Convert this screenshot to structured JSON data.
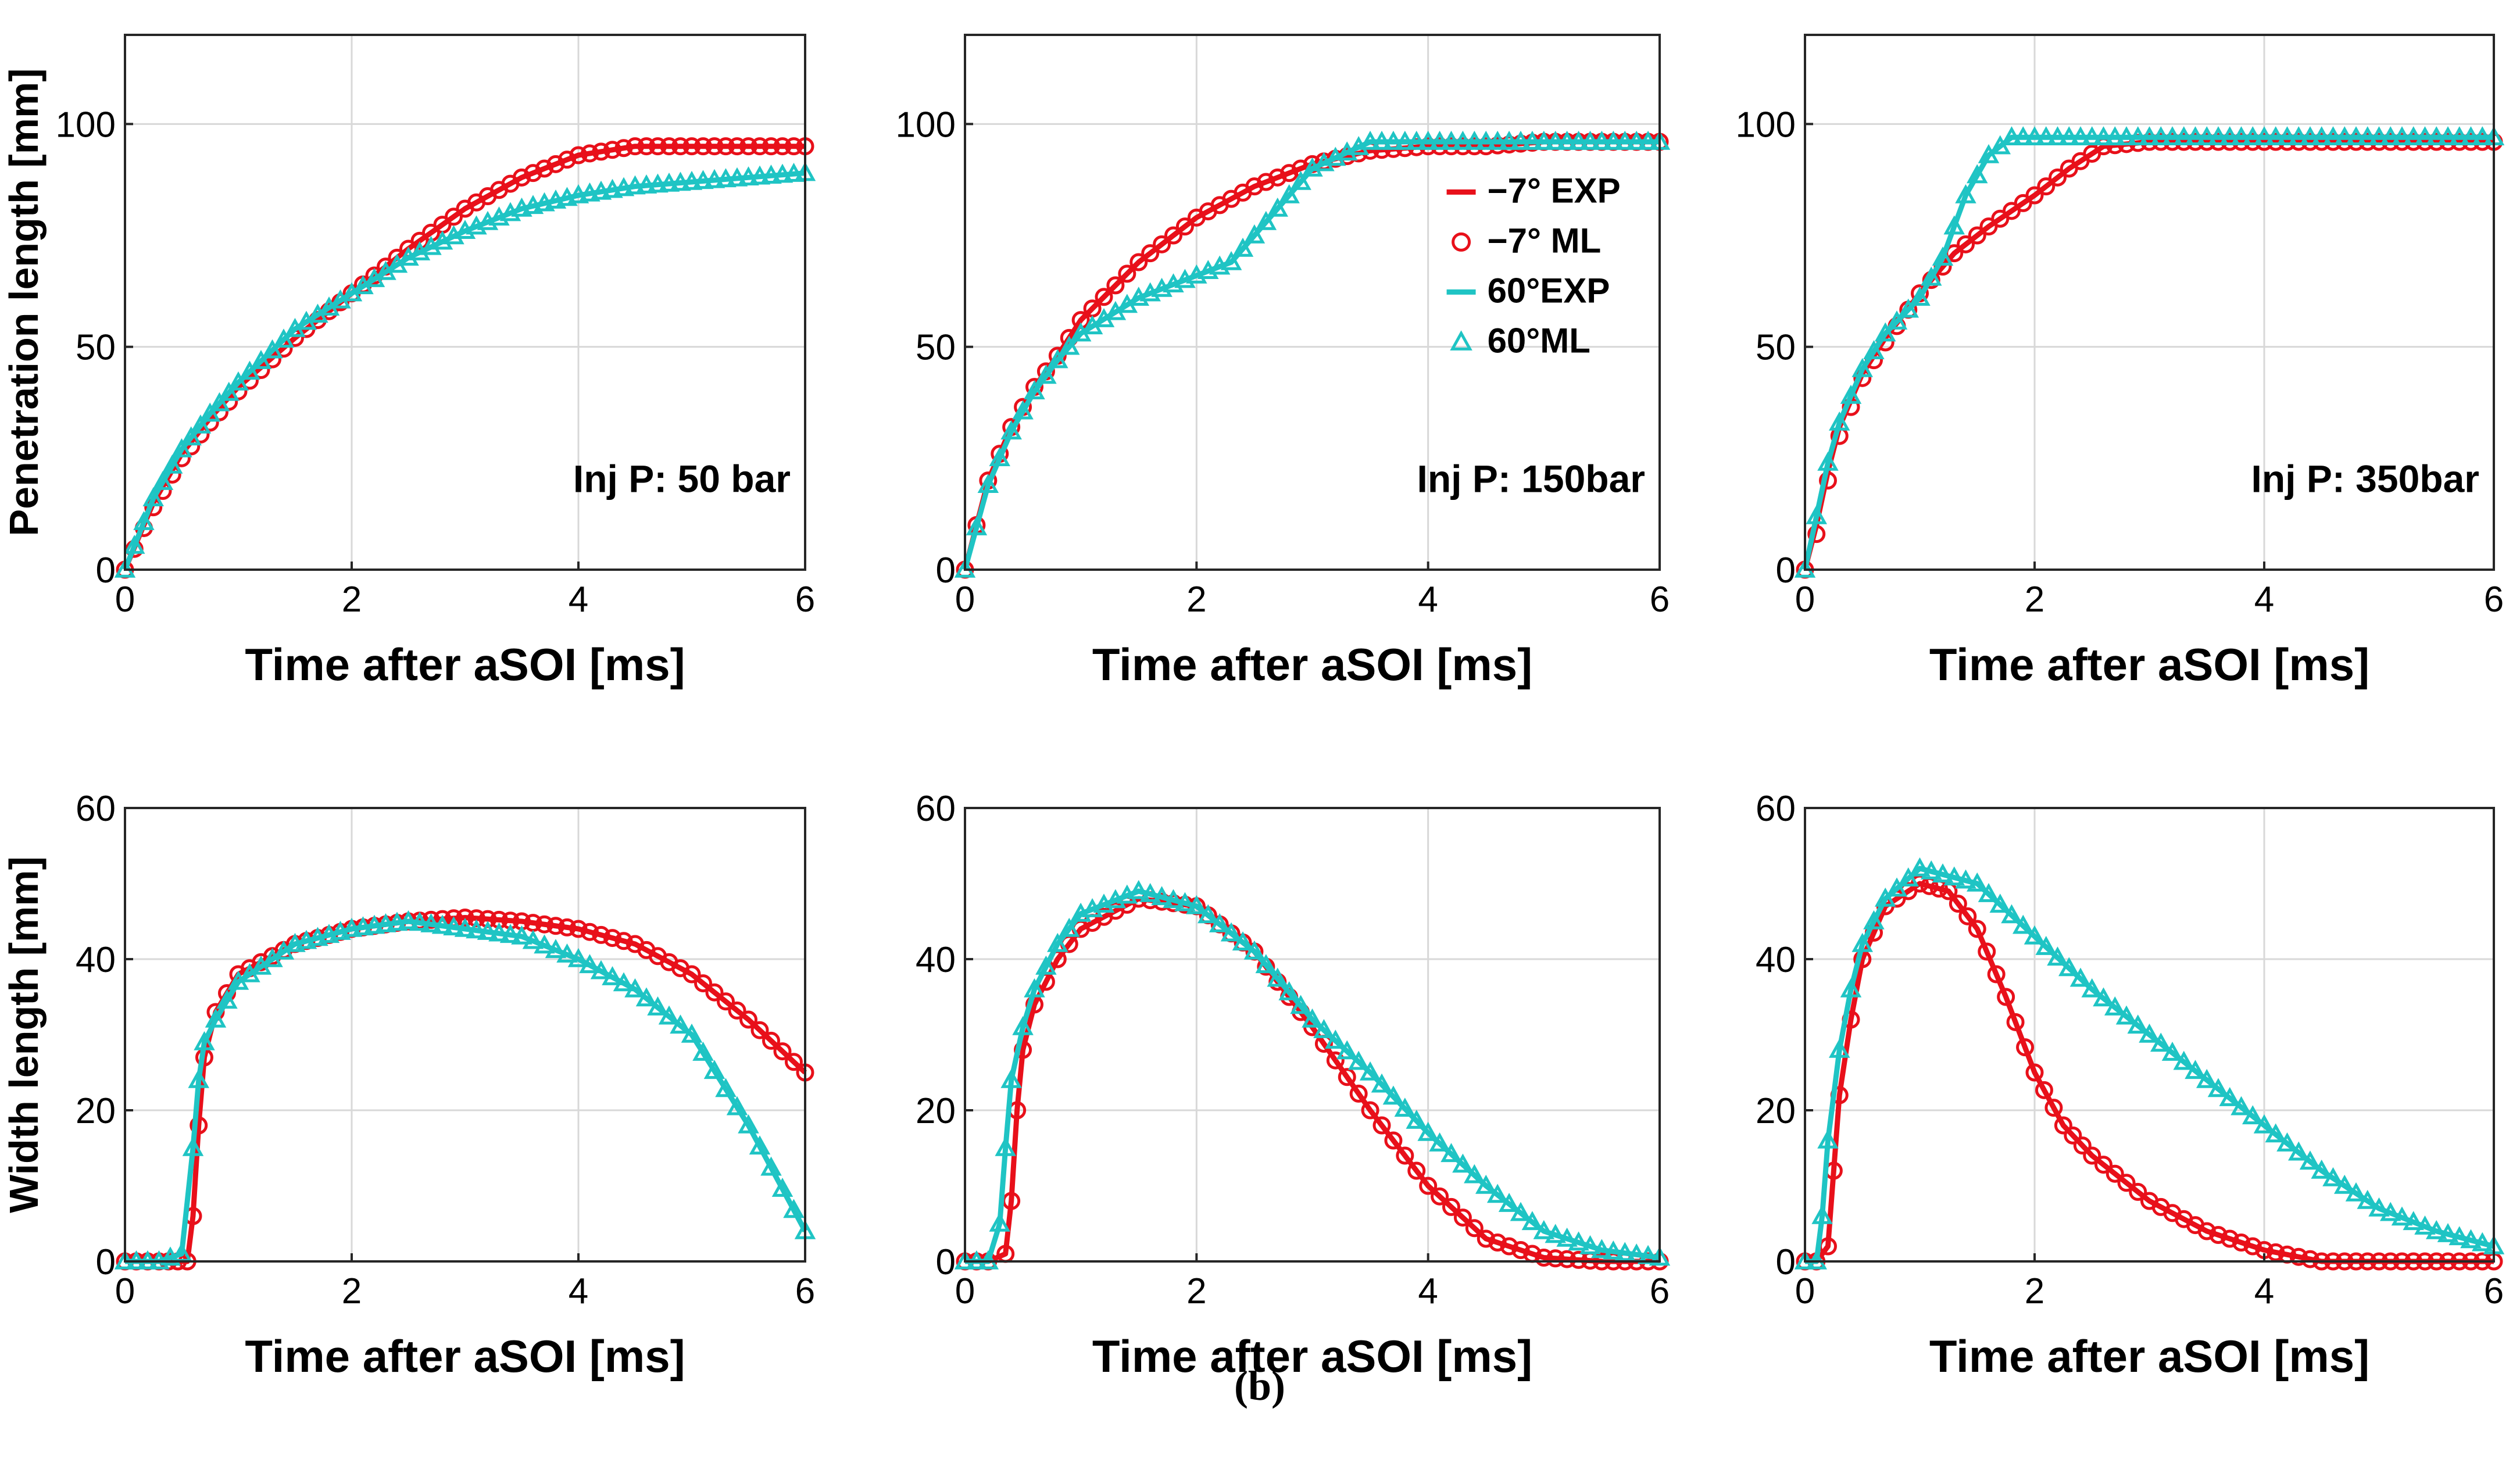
{
  "caption": "(b)",
  "colors": {
    "red": "#e8101a",
    "cyan": "#1fc4c4",
    "grid": "#d8d8d8",
    "axis": "#262626"
  },
  "chart_data": [
    {
      "type": "line",
      "panel": "top-left",
      "xlabel": "Time after aSOI [ms]",
      "ylabel": "Penetration length [mm]",
      "xlim": [
        0,
        6
      ],
      "ylim": [
        0,
        120
      ],
      "xticks": [
        "0",
        "2",
        "4",
        "6"
      ],
      "yticks": [
        "0",
        "50",
        "100"
      ],
      "annotation": "Inj P: 50 bar",
      "series": [
        {
          "name": "−7° EXP",
          "x": [
            0,
            0.25,
            0.5,
            0.75,
            1,
            1.5,
            2,
            2.5,
            3,
            3.5,
            4,
            4.5,
            5,
            5.5,
            6
          ],
          "y": [
            0,
            15,
            26,
            34,
            41,
            52,
            62,
            72,
            81,
            88,
            93,
            95,
            95,
            95,
            95
          ]
        },
        {
          "name": "−7° ML",
          "x": [
            0,
            0.25,
            0.5,
            0.75,
            1,
            1.5,
            2,
            2.5,
            3,
            3.5,
            4,
            4.5,
            5,
            5.5,
            6
          ],
          "y": [
            0,
            14,
            25,
            33,
            40,
            52,
            62,
            72,
            81,
            88,
            93,
            95,
            95,
            95,
            95
          ]
        },
        {
          "name": "60°EXP",
          "x": [
            0,
            0.25,
            0.5,
            0.75,
            1,
            1.5,
            2,
            2.5,
            3,
            3.5,
            4,
            4.5,
            5,
            5.5,
            6
          ],
          "y": [
            0,
            16,
            27,
            35,
            42,
            54,
            62,
            70,
            76,
            81,
            84,
            86,
            87,
            88,
            89
          ]
        },
        {
          "name": "60°ML",
          "x": [
            0,
            0.25,
            0.5,
            0.75,
            1,
            1.5,
            2,
            2.5,
            3,
            3.5,
            4,
            4.5,
            5,
            5.5,
            6
          ],
          "y": [
            0,
            16,
            27,
            35,
            42,
            54,
            62,
            70,
            76,
            81,
            84,
            86,
            87,
            88,
            89
          ]
        }
      ]
    },
    {
      "type": "line",
      "panel": "top-middle",
      "xlabel": "Time after aSOI [ms]",
      "ylabel": "",
      "xlim": [
        0,
        6
      ],
      "ylim": [
        0,
        120
      ],
      "xticks": [
        "0",
        "2",
        "4",
        "6"
      ],
      "yticks": [
        "0",
        "50",
        "100"
      ],
      "annotation": "Inj P: 150bar",
      "legend": {
        "position": "inside-right",
        "entries": [
          "−7° EXP",
          "−7° ML",
          "60°EXP",
          "60°ML"
        ]
      },
      "series": [
        {
          "name": "−7° EXP",
          "x": [
            0,
            0.2,
            0.4,
            0.6,
            0.8,
            1,
            1.5,
            2,
            2.5,
            3,
            3.5,
            4,
            4.5,
            5,
            5.5,
            6
          ],
          "y": [
            0,
            20,
            32,
            41,
            48,
            56,
            69,
            79,
            86,
            91,
            94,
            95,
            95,
            96,
            96,
            96
          ]
        },
        {
          "name": "−7° ML",
          "x": [
            0,
            0.2,
            0.4,
            0.6,
            0.8,
            1,
            1.5,
            2,
            2.5,
            3,
            3.5,
            4,
            4.5,
            5,
            5.5,
            6
          ],
          "y": [
            0,
            20,
            32,
            41,
            48,
            56,
            69,
            79,
            86,
            91,
            94,
            95,
            95,
            96,
            96,
            96
          ]
        },
        {
          "name": "60°EXP",
          "x": [
            0,
            0.2,
            0.4,
            0.6,
            0.8,
            1,
            1.5,
            2,
            2.3,
            2.6,
            3,
            3.5,
            4,
            5,
            6
          ],
          "y": [
            0,
            19,
            31,
            40,
            47,
            53,
            61,
            66,
            69,
            78,
            90,
            96,
            96,
            96,
            96
          ]
        },
        {
          "name": "60°ML",
          "x": [
            0,
            0.2,
            0.4,
            0.6,
            0.8,
            1,
            1.5,
            2,
            2.3,
            2.6,
            3,
            3.5,
            4,
            5,
            6
          ],
          "y": [
            0,
            19,
            31,
            40,
            47,
            53,
            61,
            66,
            69,
            78,
            90,
            96,
            96,
            96,
            96
          ]
        }
      ]
    },
    {
      "type": "line",
      "panel": "top-right",
      "xlabel": "Time after aSOI [ms]",
      "ylabel": "",
      "xlim": [
        0,
        6
      ],
      "ylim": [
        0,
        120
      ],
      "xticks": [
        "0",
        "2",
        "4",
        "6"
      ],
      "yticks": [
        "0",
        "50",
        "100"
      ],
      "annotation": "Inj P: 350bar",
      "series": [
        {
          "name": "−7° EXP",
          "x": [
            0,
            0.1,
            0.2,
            0.3,
            0.5,
            0.7,
            1,
            1.3,
            1.6,
            2,
            2.3,
            2.6,
            3,
            4,
            5,
            6
          ],
          "y": [
            0,
            10,
            22,
            32,
            44,
            52,
            62,
            71,
            77,
            84,
            90,
            95,
            96,
            96,
            96,
            96
          ]
        },
        {
          "name": "−7° ML",
          "x": [
            0,
            0.1,
            0.2,
            0.3,
            0.5,
            0.7,
            1,
            1.3,
            1.6,
            2,
            2.3,
            2.6,
            3,
            4,
            5,
            6
          ],
          "y": [
            0,
            8,
            20,
            30,
            43,
            51,
            62,
            71,
            77,
            84,
            90,
            95,
            96,
            96,
            96,
            96
          ]
        },
        {
          "name": "60°EXP",
          "x": [
            0,
            0.1,
            0.2,
            0.3,
            0.5,
            0.7,
            1,
            1.2,
            1.4,
            1.6,
            1.8,
            2,
            3,
            4,
            5,
            6
          ],
          "y": [
            0,
            12,
            24,
            33,
            45,
            53,
            61,
            70,
            84,
            93,
            97,
            97,
            97,
            97,
            97,
            97
          ]
        },
        {
          "name": "60°ML",
          "x": [
            0,
            0.1,
            0.2,
            0.3,
            0.5,
            0.7,
            1,
            1.2,
            1.4,
            1.6,
            1.8,
            2,
            3,
            4,
            5,
            6
          ],
          "y": [
            0,
            12,
            24,
            33,
            45,
            53,
            61,
            70,
            84,
            93,
            97,
            97,
            97,
            97,
            97,
            97
          ]
        }
      ]
    },
    {
      "type": "line",
      "panel": "bottom-left",
      "xlabel": "Time after aSOI [ms]",
      "ylabel": "Width length [mm]",
      "xlim": [
        0,
        6
      ],
      "ylim": [
        0,
        60
      ],
      "xticks": [
        "0",
        "2",
        "4",
        "6"
      ],
      "yticks": [
        "0",
        "20",
        "40",
        "60"
      ],
      "series": [
        {
          "name": "−7° EXP",
          "x": [
            0,
            0.3,
            0.55,
            0.6,
            0.65,
            0.7,
            0.8,
            1,
            1.5,
            2,
            2.5,
            3,
            3.5,
            4,
            4.5,
            5,
            5.5,
            6
          ],
          "y": [
            0,
            0,
            0,
            6,
            18,
            27,
            33,
            38,
            42,
            44,
            45,
            45.5,
            45,
            44,
            42,
            38,
            32,
            25
          ]
        },
        {
          "name": "−7° ML",
          "x": [
            0,
            0.3,
            0.55,
            0.6,
            0.65,
            0.7,
            0.8,
            1,
            1.5,
            2,
            2.5,
            3,
            3.5,
            4,
            4.5,
            5,
            5.5,
            6
          ],
          "y": [
            0,
            0,
            0,
            6,
            18,
            27,
            33,
            38,
            42,
            44,
            45,
            45.5,
            45,
            44,
            42,
            38,
            32,
            25
          ]
        },
        {
          "name": "60°EXP",
          "x": [
            0,
            0.3,
            0.5,
            0.6,
            0.65,
            0.7,
            0.8,
            1,
            1.5,
            2,
            2.5,
            3,
            3.5,
            4,
            4.5,
            5,
            5.5,
            6
          ],
          "y": [
            0,
            0,
            1,
            15,
            24,
            29,
            32,
            37,
            42,
            44,
            45,
            44,
            43,
            40,
            36,
            30,
            18,
            4
          ]
        },
        {
          "name": "60°ML",
          "x": [
            0,
            0.3,
            0.5,
            0.6,
            0.65,
            0.7,
            0.8,
            1,
            1.5,
            2,
            2.5,
            3,
            3.5,
            4,
            4.5,
            5,
            5.5,
            6
          ],
          "y": [
            0,
            0,
            1,
            15,
            24,
            29,
            32,
            37,
            42,
            44,
            45,
            44,
            43,
            40,
            36,
            30,
            18,
            4
          ]
        }
      ]
    },
    {
      "type": "line",
      "panel": "bottom-middle",
      "xlabel": "Time after aSOI [ms]",
      "ylabel": "",
      "xlim": [
        0,
        6
      ],
      "ylim": [
        0,
        60
      ],
      "xticks": [
        "0",
        "2",
        "4",
        "6"
      ],
      "yticks": [
        "0",
        "20",
        "40",
        "60"
      ],
      "series": [
        {
          "name": "−7° EXP",
          "x": [
            0,
            0.2,
            0.35,
            0.4,
            0.45,
            0.5,
            0.6,
            0.8,
            1,
            1.5,
            2,
            2.5,
            3,
            3.5,
            4,
            4.5,
            5,
            5.5,
            6
          ],
          "y": [
            0,
            0,
            1,
            8,
            20,
            28,
            34,
            40,
            44,
            48,
            47,
            41,
            31,
            20,
            10,
            3,
            0.5,
            0,
            0
          ]
        },
        {
          "name": "−7° ML",
          "x": [
            0,
            0.2,
            0.35,
            0.4,
            0.45,
            0.5,
            0.6,
            0.8,
            1,
            1.5,
            2,
            2.5,
            3,
            3.5,
            4,
            4.5,
            5,
            5.5,
            6
          ],
          "y": [
            0,
            0,
            1,
            8,
            20,
            28,
            34,
            40,
            44,
            48,
            47,
            41,
            31,
            20,
            10,
            3,
            0.5,
            0,
            0
          ]
        },
        {
          "name": "60°EXP",
          "x": [
            0,
            0.2,
            0.3,
            0.35,
            0.4,
            0.5,
            0.6,
            0.8,
            1,
            1.5,
            2,
            2.5,
            3,
            3.5,
            4,
            4.5,
            5,
            5.5,
            6
          ],
          "y": [
            0,
            0,
            5,
            15,
            24,
            31,
            36,
            42,
            46,
            49,
            47,
            41,
            32,
            25,
            17,
            10,
            4,
            1.5,
            0.5
          ]
        },
        {
          "name": "60°ML",
          "x": [
            0,
            0.2,
            0.3,
            0.35,
            0.4,
            0.5,
            0.6,
            0.8,
            1,
            1.5,
            2,
            2.5,
            3,
            3.5,
            4,
            4.5,
            5,
            5.5,
            6
          ],
          "y": [
            0,
            0,
            5,
            15,
            24,
            31,
            36,
            42,
            46,
            49,
            47,
            41,
            32,
            25,
            17,
            10,
            4,
            1.5,
            0.5
          ]
        }
      ]
    },
    {
      "type": "line",
      "panel": "bottom-right",
      "xlabel": "Time after aSOI [ms]",
      "ylabel": "",
      "xlim": [
        0,
        6
      ],
      "ylim": [
        0,
        60
      ],
      "xticks": [
        "0",
        "2",
        "4",
        "6"
      ],
      "yticks": [
        "0",
        "20",
        "40",
        "60"
      ],
      "series": [
        {
          "name": "−7° EXP",
          "x": [
            0,
            0.1,
            0.2,
            0.25,
            0.3,
            0.4,
            0.5,
            0.7,
            1,
            1.25,
            1.5,
            1.75,
            2,
            2.25,
            2.5,
            3,
            3.5,
            4,
            4.5,
            5,
            5.5,
            6
          ],
          "y": [
            0,
            0,
            2,
            12,
            22,
            32,
            40,
            47,
            50,
            49,
            44,
            35,
            25,
            18,
            14,
            8,
            4,
            1.5,
            0,
            0,
            0,
            0
          ]
        },
        {
          "name": "−7° ML",
          "x": [
            0,
            0.1,
            0.2,
            0.25,
            0.3,
            0.4,
            0.5,
            0.7,
            1,
            1.25,
            1.5,
            1.75,
            2,
            2.25,
            2.5,
            3,
            3.5,
            4,
            4.5,
            5,
            5.5,
            6
          ],
          "y": [
            0,
            0,
            2,
            12,
            22,
            32,
            40,
            47,
            50,
            49,
            44,
            35,
            25,
            18,
            14,
            8,
            4,
            1.5,
            0,
            0,
            0,
            0
          ]
        },
        {
          "name": "60°EXP",
          "x": [
            0,
            0.1,
            0.15,
            0.2,
            0.3,
            0.4,
            0.5,
            0.7,
            1,
            1.5,
            2,
            2.5,
            3,
            3.5,
            4,
            4.5,
            5,
            5.5,
            6
          ],
          "y": [
            0,
            0,
            6,
            16,
            28,
            36,
            42,
            48,
            52,
            50,
            43,
            36,
            30,
            24,
            18,
            12,
            7,
            4,
            2
          ]
        },
        {
          "name": "60°ML",
          "x": [
            0,
            0.1,
            0.15,
            0.2,
            0.3,
            0.4,
            0.5,
            0.7,
            1,
            1.5,
            2,
            2.5,
            3,
            3.5,
            4,
            4.5,
            5,
            5.5,
            6
          ],
          "y": [
            0,
            0,
            6,
            16,
            28,
            36,
            42,
            48,
            52,
            50,
            43,
            36,
            30,
            24,
            18,
            12,
            7,
            4,
            2
          ]
        }
      ]
    }
  ]
}
